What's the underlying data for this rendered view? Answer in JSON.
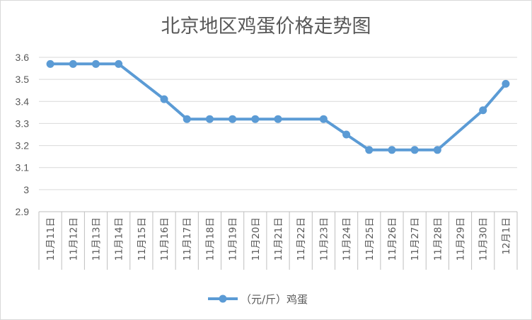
{
  "chart_data": {
    "type": "line",
    "title": "北京地区鸡蛋价格走势图",
    "categories": [
      "11月11日",
      "11月12日",
      "11月13日",
      "11月14日",
      "11月15日",
      "11月16日",
      "11月17日",
      "11月18日",
      "11月19日",
      "11月20日",
      "11月21日",
      "11月22日",
      "11月23日",
      "11月24日",
      "11月25日",
      "11月26日",
      "11月27日",
      "11月28日",
      "11月29日",
      "11月30日",
      "12月1日"
    ],
    "series": [
      {
        "name": "（元/斤）鸡蛋",
        "color": "#5b9bd5",
        "values": [
          3.57,
          3.57,
          3.57,
          3.57,
          null,
          3.41,
          3.32,
          3.32,
          3.32,
          3.32,
          3.32,
          null,
          3.32,
          3.25,
          3.18,
          3.18,
          3.18,
          3.18,
          null,
          3.36,
          3.48
        ]
      }
    ],
    "yticks": [
      "2.9",
      "3",
      "3.1",
      "3.2",
      "3.3",
      "3.4",
      "3.5",
      "3.6"
    ],
    "ylim": [
      2.9,
      3.6
    ],
    "xlabel": "",
    "ylabel": "",
    "grid": true,
    "legend": "bottom"
  }
}
